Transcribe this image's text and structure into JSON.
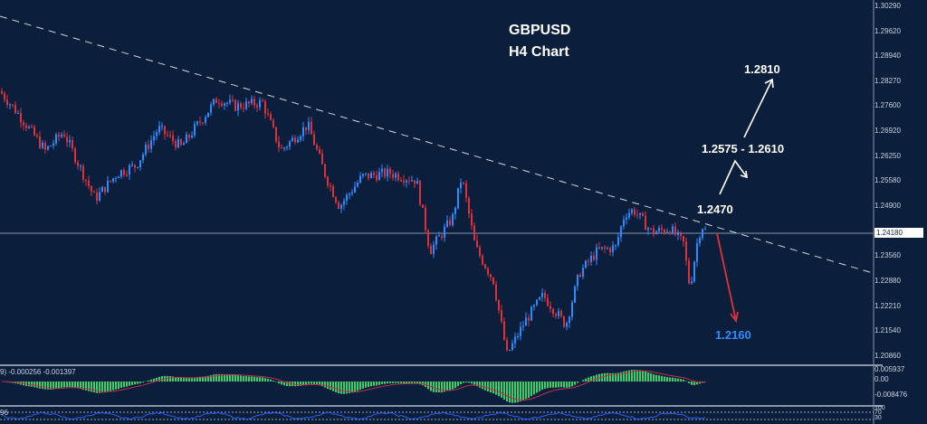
{
  "title": {
    "symbol": "GBPUSD",
    "timeframe": "H4 Chart"
  },
  "chart_data": {
    "type": "candlestick",
    "title": "GBPUSD H4 Chart",
    "ylim": [
      1.202,
      1.3045
    ],
    "price_ticks": [
      "1.30290",
      "1.29620",
      "1.28940",
      "1.28270",
      "1.27600",
      "1.26920",
      "1.26250",
      "1.25580",
      "1.24900",
      "1.24180",
      "1.23560",
      "1.22880",
      "1.22210",
      "1.21540",
      "1.20860"
    ],
    "current_price": "1.24180",
    "price_path": [
      [
        0,
        1.28
      ],
      [
        20,
        1.274
      ],
      [
        50,
        1.264
      ],
      [
        70,
        1.269
      ],
      [
        105,
        1.251
      ],
      [
        130,
        1.258
      ],
      [
        150,
        1.26
      ],
      [
        175,
        1.27
      ],
      [
        200,
        1.265
      ],
      [
        240,
        1.278
      ],
      [
        260,
        1.276
      ],
      [
        290,
        1.277
      ],
      [
        310,
        1.264
      ],
      [
        340,
        1.271
      ],
      [
        360,
        1.257
      ],
      [
        375,
        1.249
      ],
      [
        400,
        1.257
      ],
      [
        430,
        1.258
      ],
      [
        460,
        1.256
      ],
      [
        475,
        1.237
      ],
      [
        500,
        1.246
      ],
      [
        510,
        1.257
      ],
      [
        525,
        1.238
      ],
      [
        545,
        1.229
      ],
      [
        560,
        1.209
      ],
      [
        580,
        1.218
      ],
      [
        600,
        1.225
      ],
      [
        625,
        1.217
      ],
      [
        640,
        1.231
      ],
      [
        660,
        1.237
      ],
      [
        680,
        1.238
      ],
      [
        690,
        1.247
      ],
      [
        700,
        1.248
      ],
      [
        720,
        1.242
      ],
      [
        740,
        1.243
      ],
      [
        755,
        1.239
      ],
      [
        762,
        1.227
      ],
      [
        770,
        1.239
      ],
      [
        775,
        1.244
      ],
      [
        780,
        1.242
      ]
    ],
    "colors": {
      "up": "#2b8cff",
      "down": "#e0303a",
      "background": "#0b1f3c"
    },
    "annotations": {
      "target_up": "1.2810",
      "zone": "1.2575 - 1.2610",
      "resistance": "1.2470",
      "target_down": "1.2160"
    },
    "macd": {
      "label": "9) -0.000256 -0.001397",
      "ticks": [
        "0.005937",
        "0.00",
        "-0.008476"
      ]
    },
    "lower": {
      "label": "96",
      "ticks": [
        "100",
        "70",
        "30"
      ]
    }
  }
}
